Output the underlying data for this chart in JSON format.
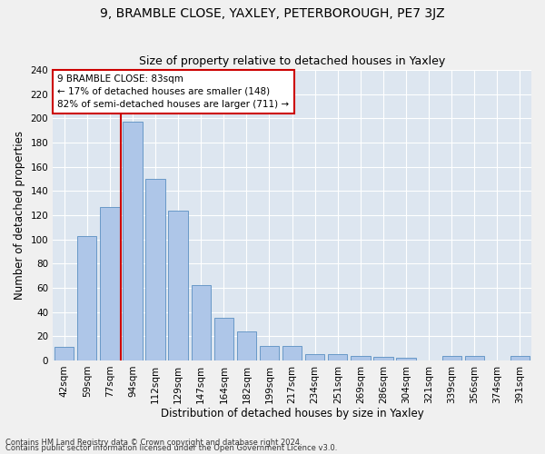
{
  "title1": "9, BRAMBLE CLOSE, YAXLEY, PETERBOROUGH, PE7 3JZ",
  "title2": "Size of property relative to detached houses in Yaxley",
  "xlabel": "Distribution of detached houses by size in Yaxley",
  "ylabel": "Number of detached properties",
  "categories": [
    "42sqm",
    "59sqm",
    "77sqm",
    "94sqm",
    "112sqm",
    "129sqm",
    "147sqm",
    "164sqm",
    "182sqm",
    "199sqm",
    "217sqm",
    "234sqm",
    "251sqm",
    "269sqm",
    "286sqm",
    "304sqm",
    "321sqm",
    "339sqm",
    "356sqm",
    "374sqm",
    "391sqm"
  ],
  "values": [
    11,
    103,
    127,
    197,
    150,
    124,
    62,
    35,
    24,
    12,
    12,
    5,
    5,
    4,
    3,
    2,
    0,
    4,
    4,
    0,
    4
  ],
  "bar_color": "#aec6e8",
  "bar_edge_color": "#5a8fc2",
  "background_color": "#dde6f0",
  "grid_color": "#ffffff",
  "vline_pos": 2.5,
  "vline_color": "#cc0000",
  "annotation_text": "9 BRAMBLE CLOSE: 83sqm\n← 17% of detached houses are smaller (148)\n82% of semi-detached houses are larger (711) →",
  "annotation_box_color": "#ffffff",
  "annotation_box_edge": "#cc0000",
  "ylim": [
    0,
    240
  ],
  "yticks": [
    0,
    20,
    40,
    60,
    80,
    100,
    120,
    140,
    160,
    180,
    200,
    220,
    240
  ],
  "footer1": "Contains HM Land Registry data © Crown copyright and database right 2024.",
  "footer2": "Contains public sector information licensed under the Open Government Licence v3.0.",
  "title1_fontsize": 10,
  "title2_fontsize": 9,
  "xlabel_fontsize": 8.5,
  "ylabel_fontsize": 8.5,
  "tick_fontsize": 7.5,
  "footer_fontsize": 6,
  "annotation_fontsize": 7.5
}
